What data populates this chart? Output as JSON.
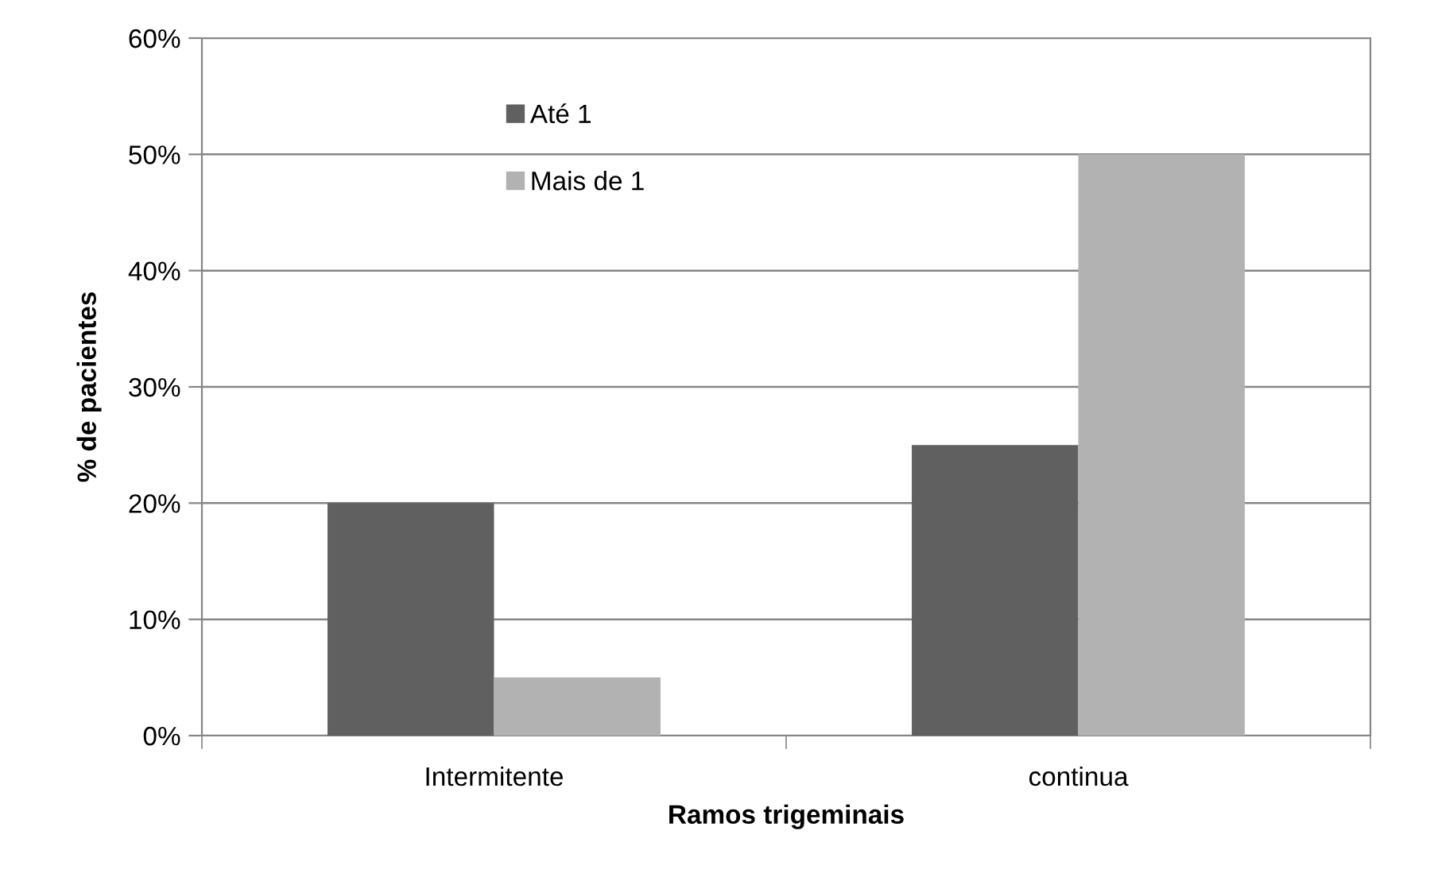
{
  "chart_data": {
    "type": "bar",
    "xlabel": "Ramos trigeminais",
    "ylabel": "% de pacientes",
    "categories": [
      "Intermitente",
      "continua"
    ],
    "series": [
      {
        "name": "Até 1",
        "color": "#606060",
        "values": [
          20,
          25
        ]
      },
      {
        "name": "Mais de 1",
        "color": "#b2b2b2",
        "values": [
          5,
          50
        ]
      }
    ],
    "ylim": [
      0,
      60
    ],
    "yticks": [
      {
        "value": 0,
        "label": "0%"
      },
      {
        "value": 10,
        "label": "10%"
      },
      {
        "value": 20,
        "label": "20%"
      },
      {
        "value": 30,
        "label": "30%"
      },
      {
        "value": 40,
        "label": "40%"
      },
      {
        "value": 50,
        "label": "50%"
      },
      {
        "value": 60,
        "label": "60%"
      }
    ],
    "grid": "y",
    "legend": "top left"
  }
}
